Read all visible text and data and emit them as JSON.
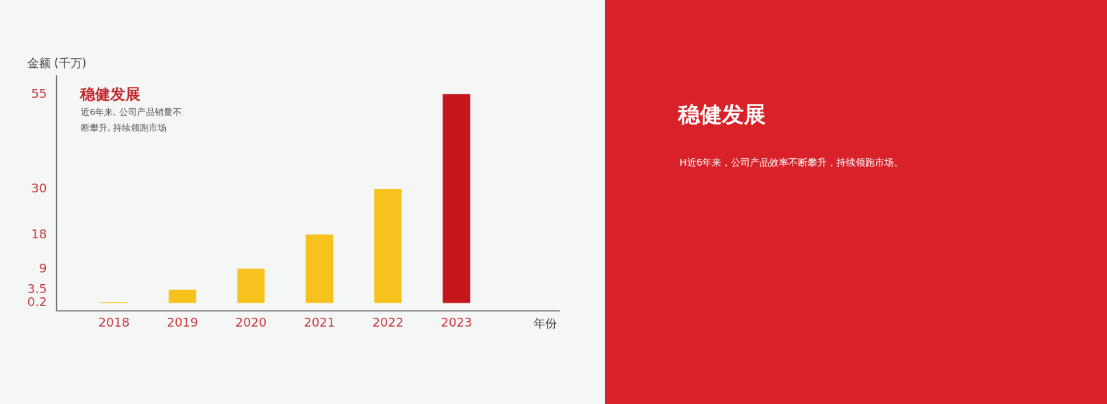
{
  "chart_data": [
    {
      "type": "bar",
      "title": "稳健发展",
      "subtitle": "近6年来, 公司产品销量不断攀升, 持续领跑市场",
      "xlabel": "年份",
      "ylabel": "金额 (千万)",
      "categories": [
        "2018",
        "2019",
        "2020",
        "2021",
        "2022",
        "2023"
      ],
      "values": [
        0.2,
        3.5,
        9,
        18,
        30,
        55
      ],
      "colors": [
        "#f7c21e",
        "#f7c21e",
        "#f7c21e",
        "#f7c21e",
        "#f7c21e",
        "#c5161c"
      ],
      "ylim": [
        -2,
        60
      ],
      "yticks": [
        0.2,
        3.5,
        9,
        18,
        30,
        55
      ]
    },
    {
      "type": "other",
      "title": "稳健发展",
      "annotations": [
        "H近6年来，公司产品效率不断攀升，持续领跑市场。"
      ],
      "color": "#d92129"
    }
  ]
}
